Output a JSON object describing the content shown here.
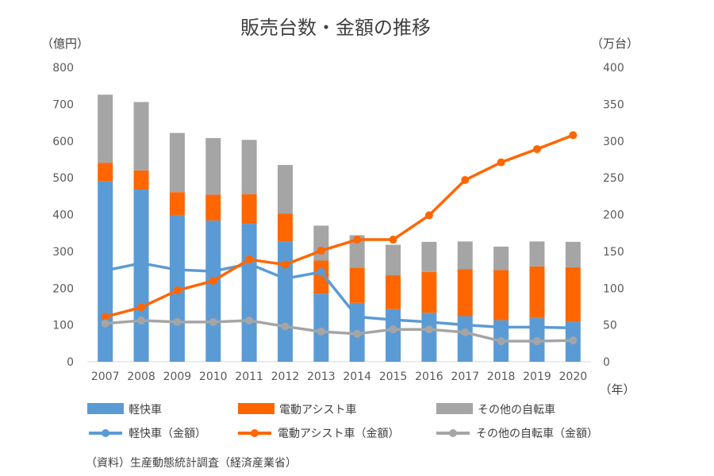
{
  "chart_data": {
    "type": "bar+line",
    "title": "販売台数・金額の推移",
    "left_axis_label": "（億円）",
    "right_axis_label": "（万台）",
    "x_unit_label": "（年）",
    "source": "（資料）生産動態統計調査（経済産業省）",
    "categories": [
      "2007",
      "2008",
      "2009",
      "2010",
      "2011",
      "2012",
      "2013",
      "2014",
      "2015",
      "2016",
      "2017",
      "2018",
      "2019",
      "2020"
    ],
    "left_axis": {
      "min": 0,
      "max": 800,
      "step": 100
    },
    "right_axis": {
      "min": 0,
      "max": 400,
      "step": 50
    },
    "grid": false,
    "legend_position": "bottom",
    "bar_series": [
      {
        "name": "軽快車",
        "color": "#5B9BD5",
        "axis": "left",
        "values": [
          490,
          468,
          399,
          384,
          375,
          326,
          185,
          160,
          143,
          133,
          124,
          113,
          119,
          108
        ]
      },
      {
        "name": "電動アシスト車",
        "color": "#FF6600",
        "axis": "left",
        "values": [
          51,
          52,
          62,
          70,
          80,
          77,
          90,
          96,
          92,
          111,
          128,
          136,
          140,
          149
        ]
      },
      {
        "name": "その他の自転車",
        "color": "#A5A5A5",
        "axis": "left",
        "values": [
          185,
          186,
          161,
          154,
          148,
          132,
          95,
          88,
          83,
          82,
          75,
          64,
          68,
          69
        ]
      }
    ],
    "line_series": [
      {
        "name": "軽快車（金額）",
        "color": "#5B9BD5",
        "axis": "right",
        "values": [
          124,
          134,
          125,
          123,
          133,
          113,
          122,
          61,
          57,
          54,
          50,
          47,
          47,
          46
        ]
      },
      {
        "name": "電動アシスト車（金額）",
        "color": "#FF6600",
        "axis": "right",
        "values": [
          61,
          74,
          97,
          110,
          139,
          132,
          151,
          166,
          166,
          199,
          247,
          271,
          289,
          308
        ]
      },
      {
        "name": "その他の自転車（金額）",
        "color": "#A5A5A5",
        "axis": "right",
        "values": [
          52,
          56,
          54,
          54,
          56,
          48,
          41,
          38,
          44,
          44,
          40,
          28,
          28,
          29
        ]
      }
    ]
  }
}
